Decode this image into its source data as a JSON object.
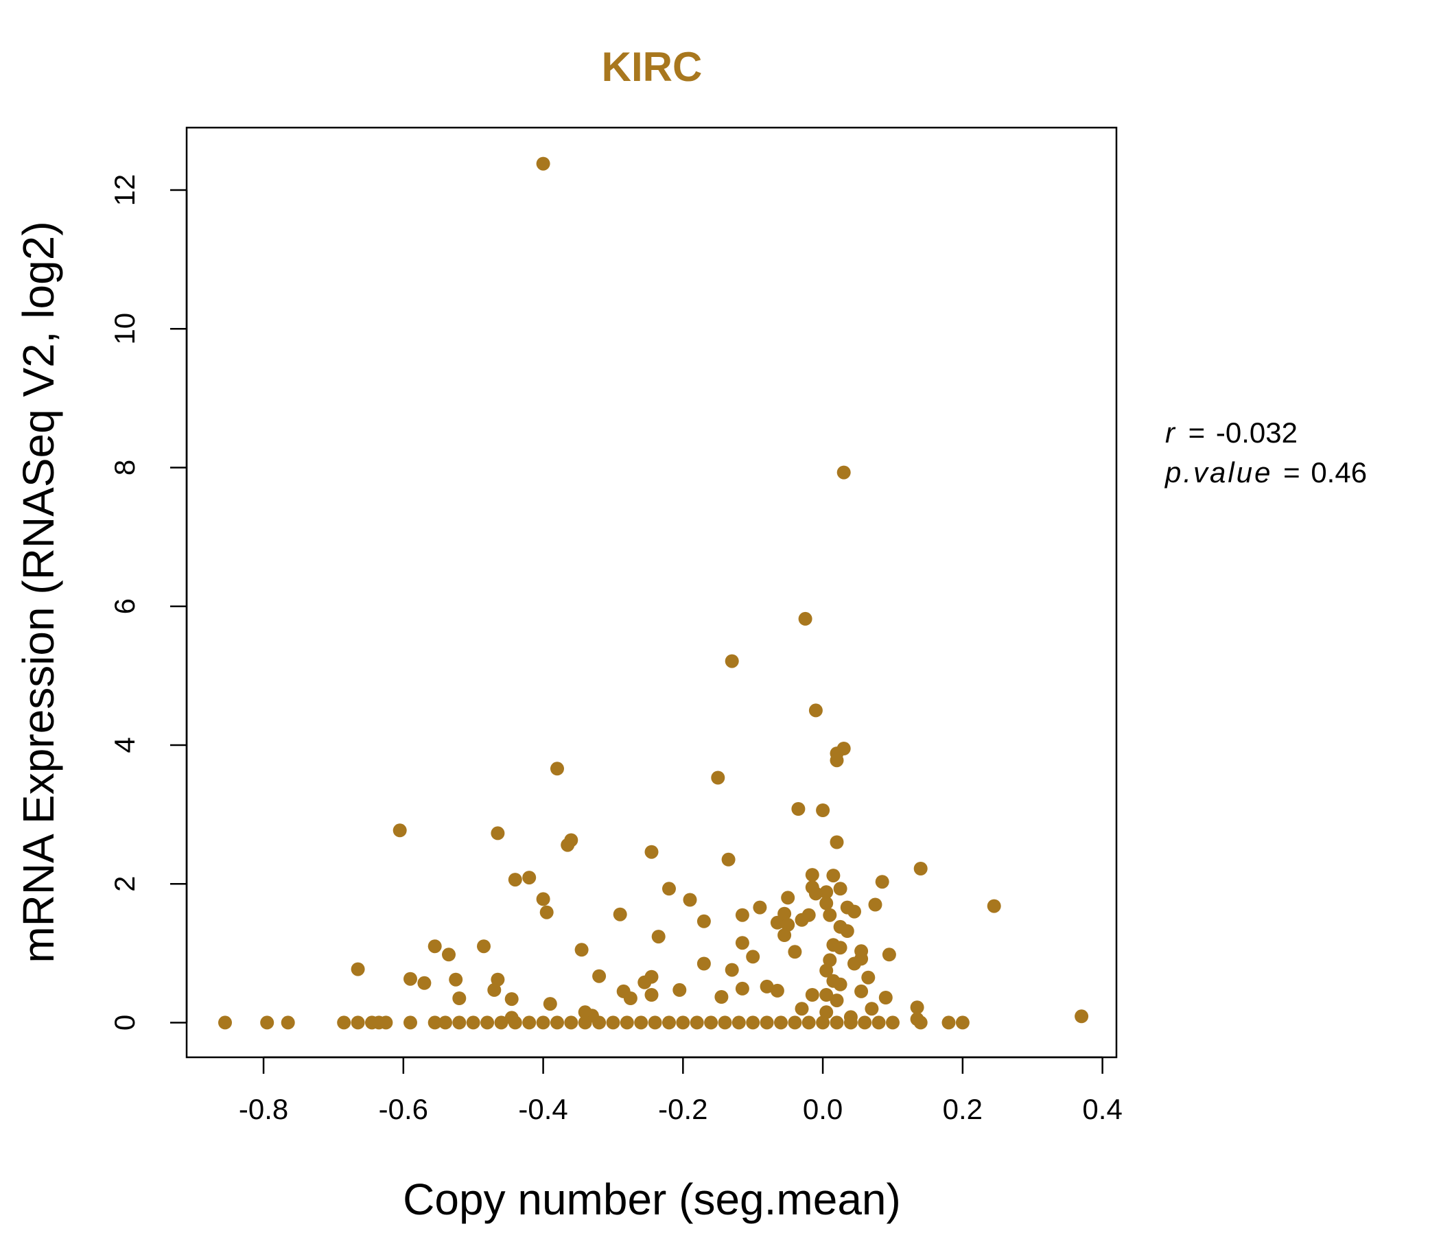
{
  "chart_data": {
    "type": "scatter",
    "title": "KIRC",
    "xlabel": "Copy number (seg.mean)",
    "ylabel": "mRNA Expression (RNASeq V2, log2)",
    "xlim": [
      -0.91,
      0.42
    ],
    "ylim": [
      -0.5,
      12.9
    ],
    "xticks": [
      -0.8,
      -0.6,
      -0.4,
      -0.2,
      0.0,
      0.2,
      0.4
    ],
    "xtick_labels": [
      "-0.8",
      "-0.6",
      "-0.4",
      "-0.2",
      "0.0",
      "0.2",
      "0.4"
    ],
    "yticks": [
      0,
      2,
      4,
      6,
      8,
      10,
      12
    ],
    "ytick_labels": [
      "0",
      "2",
      "4",
      "6",
      "8",
      "10",
      "12"
    ],
    "grid": false,
    "color": "#A8771E",
    "stats": {
      "r_label": "r",
      "r_value": "-0.032",
      "p_label": "p.value",
      "p_value": "0.46"
    },
    "points": [
      [
        -0.4,
        12.38
      ],
      [
        0.03,
        7.93
      ],
      [
        -0.025,
        5.82
      ],
      [
        -0.13,
        5.21
      ],
      [
        -0.01,
        4.5
      ],
      [
        0.03,
        3.95
      ],
      [
        0.02,
        3.88
      ],
      [
        0.02,
        3.78
      ],
      [
        -0.38,
        3.66
      ],
      [
        -0.15,
        3.53
      ],
      [
        -0.035,
        3.08
      ],
      [
        0.0,
        3.06
      ],
      [
        -0.605,
        2.77
      ],
      [
        -0.465,
        2.73
      ],
      [
        -0.36,
        2.63
      ],
      [
        0.02,
        2.6
      ],
      [
        -0.365,
        2.56
      ],
      [
        -0.245,
        2.46
      ],
      [
        -0.135,
        2.35
      ],
      [
        0.14,
        2.22
      ],
      [
        -0.015,
        2.13
      ],
      [
        0.015,
        2.12
      ],
      [
        -0.42,
        2.09
      ],
      [
        -0.44,
        2.06
      ],
      [
        0.085,
        2.03
      ],
      [
        -0.015,
        1.95
      ],
      [
        0.025,
        1.93
      ],
      [
        -0.22,
        1.93
      ],
      [
        0.005,
        1.88
      ],
      [
        -0.01,
        1.86
      ],
      [
        -0.05,
        1.8
      ],
      [
        -0.4,
        1.78
      ],
      [
        -0.19,
        1.77
      ],
      [
        0.005,
        1.72
      ],
      [
        0.075,
        1.7
      ],
      [
        0.245,
        1.68
      ],
      [
        0.035,
        1.66
      ],
      [
        -0.09,
        1.66
      ],
      [
        -0.395,
        1.59
      ],
      [
        0.045,
        1.6
      ],
      [
        -0.29,
        1.56
      ],
      [
        -0.115,
        1.55
      ],
      [
        -0.055,
        1.57
      ],
      [
        -0.02,
        1.55
      ],
      [
        0.01,
        1.55
      ],
      [
        -0.17,
        1.46
      ],
      [
        -0.03,
        1.48
      ],
      [
        -0.065,
        1.44
      ],
      [
        -0.05,
        1.41
      ],
      [
        0.025,
        1.38
      ],
      [
        0.035,
        1.32
      ],
      [
        -0.055,
        1.26
      ],
      [
        -0.235,
        1.24
      ],
      [
        -0.115,
        1.15
      ],
      [
        0.015,
        1.12
      ],
      [
        -0.555,
        1.1
      ],
      [
        -0.485,
        1.1
      ],
      [
        -0.345,
        1.05
      ],
      [
        0.025,
        1.08
      ],
      [
        0.055,
        1.03
      ],
      [
        -0.04,
        1.02
      ],
      [
        -0.535,
        0.98
      ],
      [
        0.095,
        0.98
      ],
      [
        -0.1,
        0.95
      ],
      [
        0.055,
        0.92
      ],
      [
        0.01,
        0.9
      ],
      [
        0.045,
        0.85
      ],
      [
        -0.17,
        0.85
      ],
      [
        -0.665,
        0.77
      ],
      [
        -0.13,
        0.76
      ],
      [
        0.005,
        0.75
      ],
      [
        -0.32,
        0.67
      ],
      [
        0.065,
        0.65
      ],
      [
        -0.59,
        0.63
      ],
      [
        -0.245,
        0.66
      ],
      [
        -0.525,
        0.62
      ],
      [
        -0.465,
        0.62
      ],
      [
        0.015,
        0.6
      ],
      [
        -0.255,
        0.58
      ],
      [
        -0.57,
        0.57
      ],
      [
        0.025,
        0.55
      ],
      [
        -0.08,
        0.52
      ],
      [
        -0.065,
        0.46
      ],
      [
        -0.115,
        0.49
      ],
      [
        -0.47,
        0.47
      ],
      [
        -0.205,
        0.47
      ],
      [
        -0.285,
        0.45
      ],
      [
        0.055,
        0.45
      ],
      [
        -0.245,
        0.4
      ],
      [
        -0.015,
        0.4
      ],
      [
        0.005,
        0.4
      ],
      [
        -0.145,
        0.37
      ],
      [
        0.09,
        0.36
      ],
      [
        -0.275,
        0.35
      ],
      [
        -0.52,
        0.35
      ],
      [
        -0.445,
        0.34
      ],
      [
        0.02,
        0.32
      ],
      [
        -0.39,
        0.27
      ],
      [
        0.135,
        0.22
      ],
      [
        -0.03,
        0.2
      ],
      [
        0.07,
        0.2
      ],
      [
        -0.34,
        0.15
      ],
      [
        0.005,
        0.15
      ],
      [
        -0.33,
        0.1
      ],
      [
        0.37,
        0.09
      ],
      [
        -0.445,
        0.07
      ],
      [
        0.04,
        0.08
      ],
      [
        0.135,
        0.05
      ],
      [
        -0.855,
        0.0
      ],
      [
        -0.795,
        0.0
      ],
      [
        -0.765,
        0.0
      ],
      [
        -0.685,
        0.0
      ],
      [
        -0.665,
        0.0
      ],
      [
        -0.645,
        0.0
      ],
      [
        -0.635,
        0.0
      ],
      [
        -0.625,
        0.0
      ],
      [
        -0.59,
        0.0
      ],
      [
        -0.555,
        0.0
      ],
      [
        -0.54,
        0.0
      ],
      [
        -0.52,
        0.0
      ],
      [
        -0.5,
        0.0
      ],
      [
        -0.48,
        0.0
      ],
      [
        -0.46,
        0.0
      ],
      [
        -0.44,
        0.0
      ],
      [
        -0.42,
        0.0
      ],
      [
        -0.4,
        0.0
      ],
      [
        -0.38,
        0.0
      ],
      [
        -0.36,
        0.0
      ],
      [
        -0.34,
        0.0
      ],
      [
        -0.32,
        0.0
      ],
      [
        -0.3,
        0.0
      ],
      [
        -0.28,
        0.0
      ],
      [
        -0.26,
        0.0
      ],
      [
        -0.24,
        0.0
      ],
      [
        -0.22,
        0.0
      ],
      [
        -0.2,
        0.0
      ],
      [
        -0.18,
        0.0
      ],
      [
        -0.16,
        0.0
      ],
      [
        -0.14,
        0.0
      ],
      [
        -0.12,
        0.0
      ],
      [
        -0.1,
        0.0
      ],
      [
        -0.08,
        0.0
      ],
      [
        -0.06,
        0.0
      ],
      [
        -0.04,
        0.0
      ],
      [
        -0.02,
        0.0
      ],
      [
        0.0,
        0.0
      ],
      [
        0.02,
        0.0
      ],
      [
        0.04,
        0.0
      ],
      [
        0.06,
        0.0
      ],
      [
        0.08,
        0.0
      ],
      [
        0.1,
        0.0
      ],
      [
        0.14,
        0.0
      ],
      [
        0.18,
        0.0
      ],
      [
        0.2,
        0.0
      ]
    ]
  }
}
